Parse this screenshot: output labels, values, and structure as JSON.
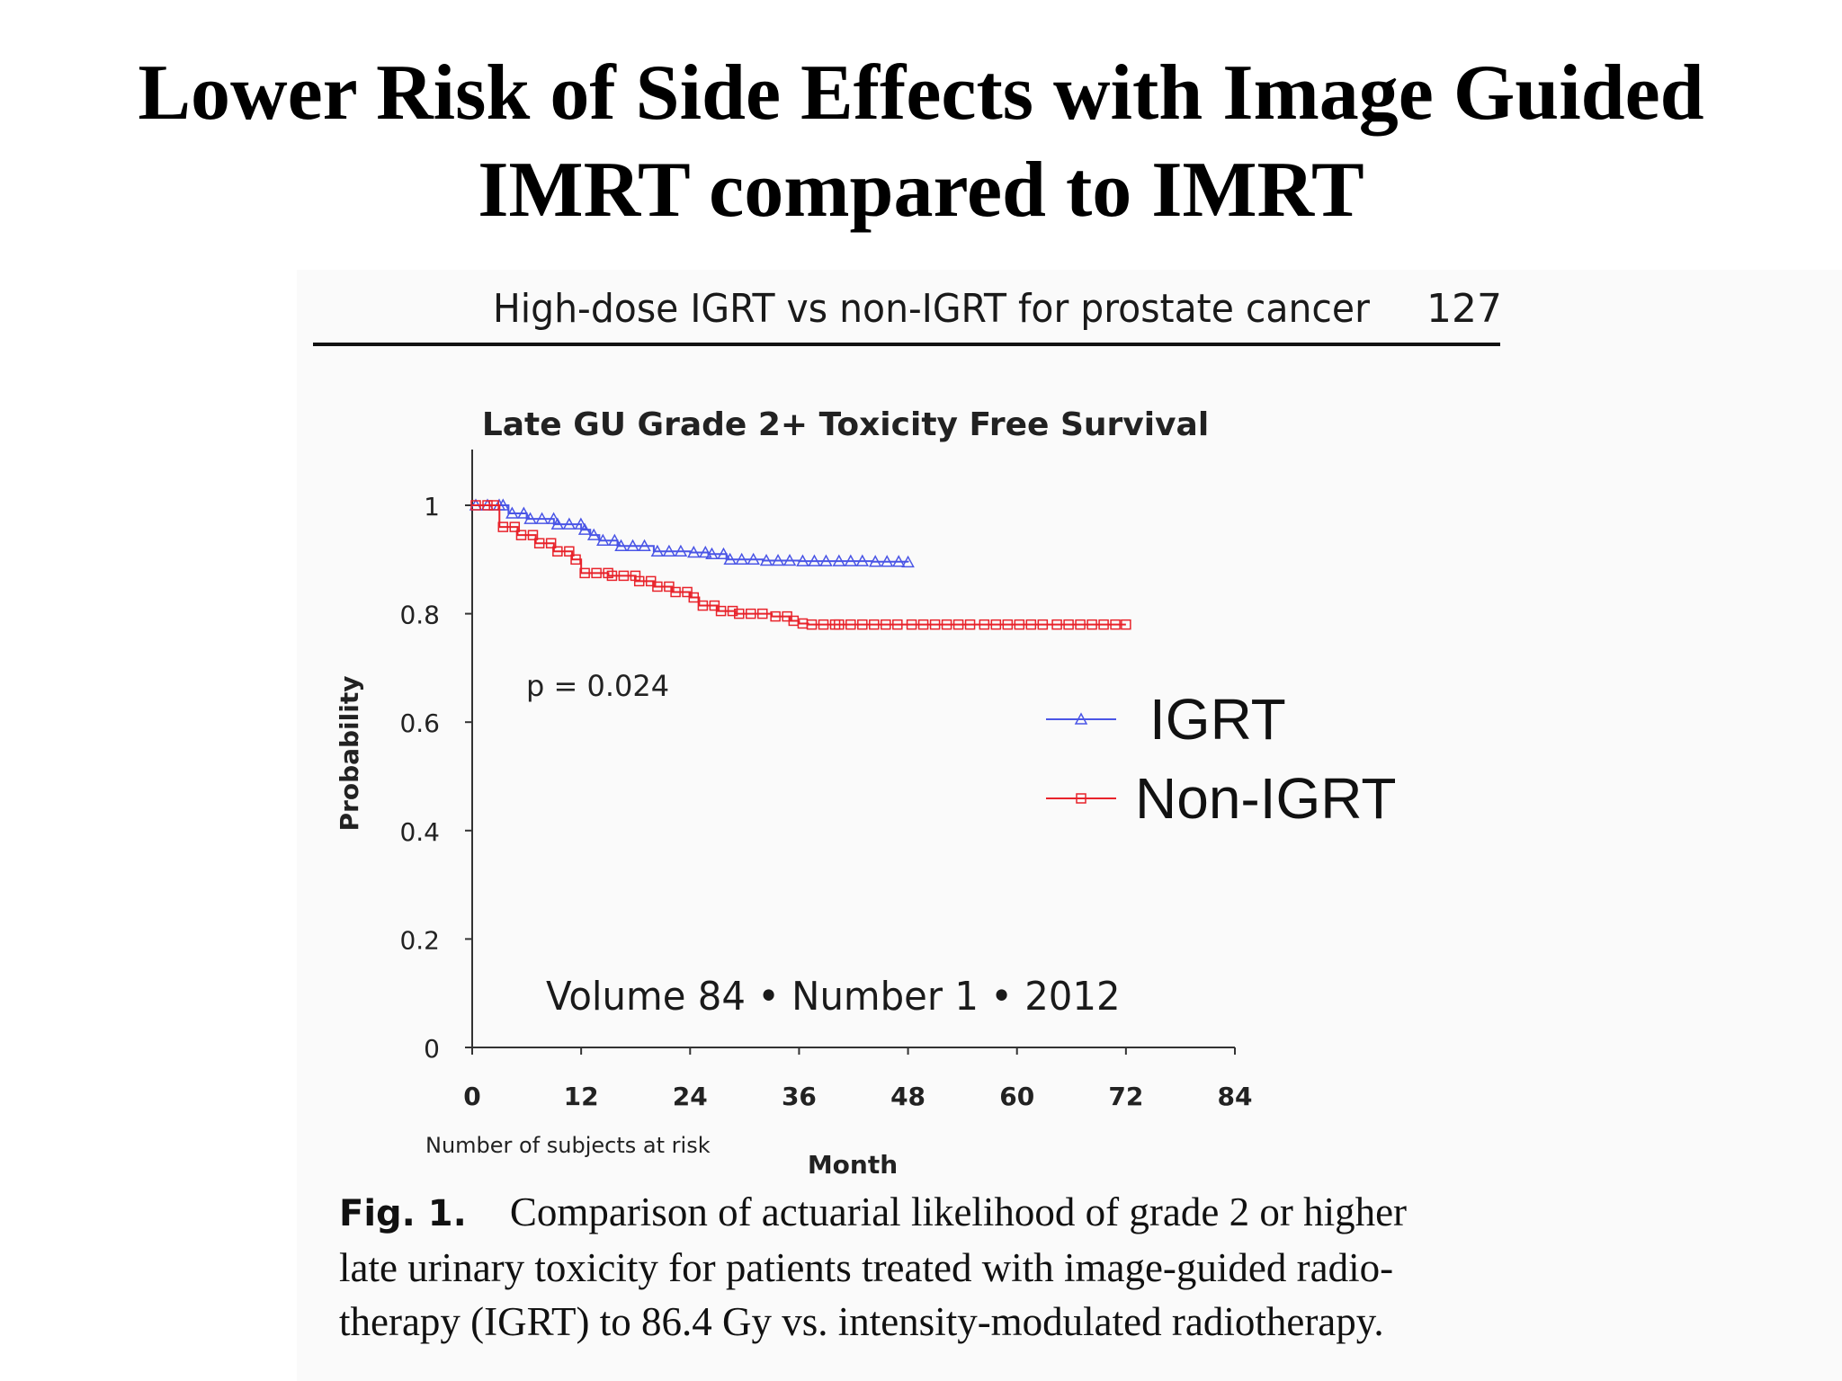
{
  "slide": {
    "title_line1": "Lower Risk of Side Effects with Image Guided",
    "title_line2": "IMRT compared to IMRT"
  },
  "article": {
    "running_head": "High-dose IGRT vs non-IGRT for prostate cancer",
    "page_number": "127",
    "footer": "Volume 84 • Number 1 • 2012",
    "risk_table_label": "Number of subjects at risk"
  },
  "caption": {
    "label": "Fig. 1.",
    "line1": "Comparison of actuarial likelihood of grade 2 or higher",
    "line2": "late urinary toxicity for patients treated with image-guided radio-",
    "line3": "therapy (IGRT) to 86.4 Gy vs. intensity-modulated radiotherapy."
  },
  "colors": {
    "igrt": "#4a55e6",
    "non_igrt": "#e8232b",
    "axis": "#333333"
  },
  "chart_data": {
    "type": "line",
    "title": "Late GU Grade 2+ Toxicity Free Survival",
    "xlabel": "Month",
    "ylabel": "Probability",
    "xlim": [
      0,
      84
    ],
    "ylim": [
      0,
      1
    ],
    "x_ticks": [
      0,
      12,
      24,
      36,
      48,
      60,
      72,
      84
    ],
    "y_ticks": [
      0,
      0.2,
      0.4,
      0.6,
      0.8,
      1
    ],
    "y_tick_labels": [
      "0",
      "0.2",
      "0.4",
      "0.6",
      "0.8",
      "1"
    ],
    "grid": false,
    "legend_position": "right",
    "annotation": "p = 0.024",
    "step": true,
    "series": [
      {
        "name": "IGRT",
        "marker": "triangle",
        "x": [
          0,
          3,
          4,
          6,
          9,
          12,
          13,
          14,
          16,
          20,
          24,
          26,
          28,
          32,
          36,
          40,
          44,
          48
        ],
        "y": [
          1.0,
          1.0,
          0.985,
          0.975,
          0.965,
          0.955,
          0.945,
          0.935,
          0.925,
          0.915,
          0.913,
          0.91,
          0.9,
          0.898,
          0.897,
          0.897,
          0.896,
          0.895
        ]
      },
      {
        "name": "Non-IGRT",
        "marker": "square",
        "x": [
          0,
          2,
          3,
          5,
          7,
          9,
          11,
          12,
          15,
          18,
          20,
          22,
          24,
          25,
          27,
          29,
          33,
          35,
          36,
          37,
          40,
          48,
          56,
          64,
          72
        ],
        "y": [
          1.0,
          1.0,
          0.96,
          0.945,
          0.93,
          0.915,
          0.9,
          0.875,
          0.87,
          0.86,
          0.85,
          0.84,
          0.83,
          0.815,
          0.805,
          0.8,
          0.795,
          0.787,
          0.782,
          0.78,
          0.78,
          0.78,
          0.78,
          0.78,
          0.78
        ]
      }
    ]
  }
}
